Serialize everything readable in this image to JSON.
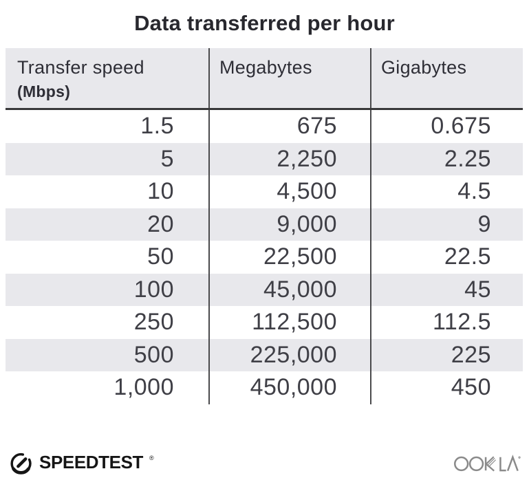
{
  "title": "Data transferred per hour",
  "chart_data": {
    "type": "table",
    "title": "Data transferred per hour",
    "columns": [
      {
        "label": "Transfer speed",
        "sublabel": "(Mbps)"
      },
      {
        "label": "Megabytes",
        "sublabel": ""
      },
      {
        "label": "Gigabytes",
        "sublabel": ""
      }
    ],
    "rows": [
      [
        "1.5",
        "675",
        "0.675"
      ],
      [
        "5",
        "2,250",
        "2.25"
      ],
      [
        "10",
        "4,500",
        "4.5"
      ],
      [
        "20",
        "9,000",
        "9"
      ],
      [
        "50",
        "22,500",
        "22.5"
      ],
      [
        "100",
        "45,000",
        "45"
      ],
      [
        "250",
        "112,500",
        "112.5"
      ],
      [
        "500",
        "225,000",
        "225"
      ],
      [
        "1,000",
        "450,000",
        "450"
      ]
    ],
    "layout": {
      "striped_rows": true,
      "column_dividers": true,
      "value_alignment": "right"
    }
  },
  "footer": {
    "brand": "SPEEDTEST",
    "brand_mark": "®",
    "company": "OOKLA",
    "company_mark": "®"
  },
  "icons": {
    "speedtest": "speedometer-gauge-icon",
    "ookla": "ookla-wordmark"
  },
  "colors": {
    "header_bg": "#e8e8ec",
    "stripe": "#e8e8ec",
    "divider": "#4a4a4c",
    "header_rule": "#38383a",
    "title_text": "#28282e",
    "header_text": "#2e2e36",
    "cell_text": "#3f3f46",
    "brand_black": "#151515",
    "ookla_gray": "#8a8a8a"
  }
}
